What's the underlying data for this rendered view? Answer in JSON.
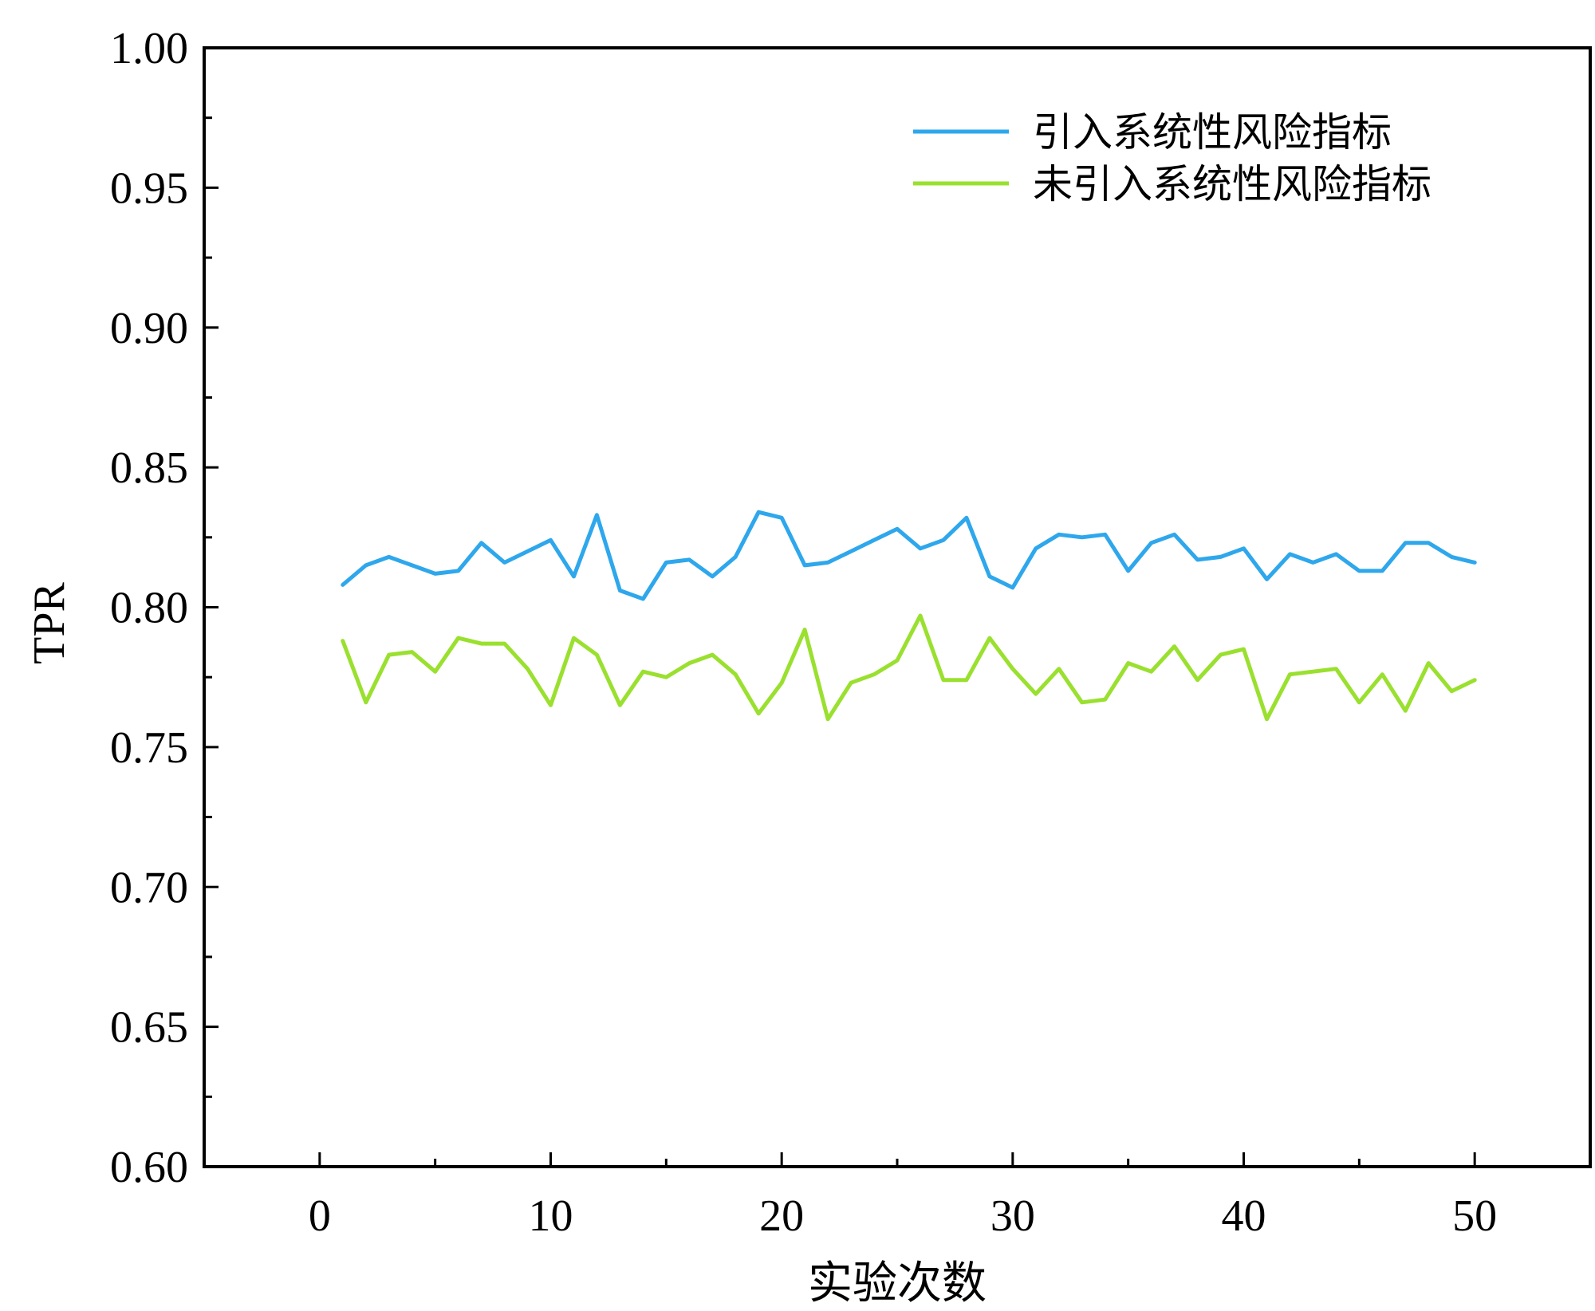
{
  "chart_data": {
    "type": "line",
    "xlabel": "实验次数",
    "ylabel": "TPR",
    "xlim": [
      -5,
      55
    ],
    "ylim": [
      0.6,
      1.0
    ],
    "xticks": [
      0,
      10,
      20,
      30,
      40,
      50
    ],
    "xtick_labels": [
      "0",
      "10",
      "20",
      "30",
      "40",
      "50"
    ],
    "yticks": [
      0.6,
      0.65,
      0.7,
      0.75,
      0.8,
      0.85,
      0.9,
      0.95,
      1.0
    ],
    "ytick_labels": [
      "0.60",
      "0.65",
      "0.70",
      "0.75",
      "0.80",
      "0.85",
      "0.90",
      "0.95",
      "1.00"
    ],
    "grid": false,
    "legend_position": "top-right",
    "x": [
      1,
      2,
      3,
      4,
      5,
      6,
      7,
      8,
      9,
      10,
      11,
      12,
      13,
      14,
      15,
      16,
      17,
      18,
      19,
      20,
      21,
      22,
      23,
      24,
      25,
      26,
      27,
      28,
      29,
      30,
      31,
      32,
      33,
      34,
      35,
      36,
      37,
      38,
      39,
      40,
      41,
      42,
      43,
      44,
      45,
      46,
      47,
      48,
      49,
      50
    ],
    "series": [
      {
        "name": "引入系统性风险指标",
        "color": "#2ea7ec",
        "values": [
          0.808,
          0.815,
          0.818,
          0.815,
          0.812,
          0.813,
          0.823,
          0.816,
          0.82,
          0.824,
          0.811,
          0.833,
          0.806,
          0.803,
          0.816,
          0.817,
          0.811,
          0.818,
          0.834,
          0.832,
          0.815,
          0.816,
          0.82,
          0.824,
          0.828,
          0.821,
          0.824,
          0.832,
          0.811,
          0.807,
          0.821,
          0.826,
          0.825,
          0.826,
          0.813,
          0.823,
          0.826,
          0.817,
          0.818,
          0.821,
          0.81,
          0.819,
          0.816,
          0.819,
          0.813,
          0.813,
          0.823,
          0.823,
          0.818,
          0.816
        ]
      },
      {
        "name": "未引入系统性风险指标",
        "color": "#9ae02f",
        "values": [
          0.788,
          0.766,
          0.783,
          0.784,
          0.777,
          0.789,
          0.787,
          0.787,
          0.778,
          0.765,
          0.789,
          0.783,
          0.765,
          0.777,
          0.775,
          0.78,
          0.783,
          0.776,
          0.762,
          0.773,
          0.792,
          0.76,
          0.773,
          0.776,
          0.781,
          0.797,
          0.774,
          0.774,
          0.789,
          0.778,
          0.769,
          0.778,
          0.766,
          0.767,
          0.78,
          0.777,
          0.786,
          0.774,
          0.783,
          0.785,
          0.76,
          0.776,
          0.777,
          0.778,
          0.766,
          0.776,
          0.763,
          0.78,
          0.77,
          0.774
        ]
      }
    ]
  }
}
